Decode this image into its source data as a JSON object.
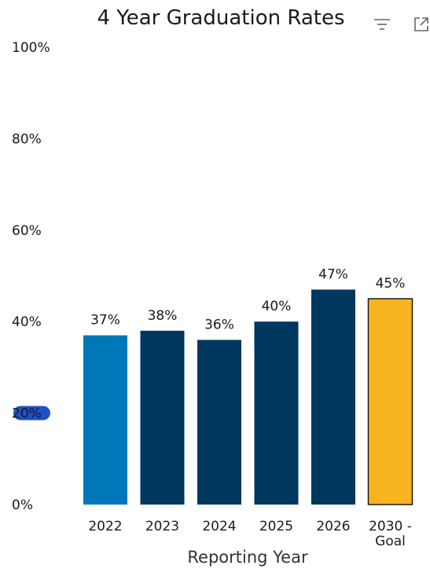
{
  "chart_data": {
    "type": "bar",
    "title": "4 Year Graduation Rates",
    "xlabel": "Reporting Year",
    "ylabel": "",
    "ylim": [
      0,
      100
    ],
    "yticks": [
      "0%",
      "20%",
      "40%",
      "60%",
      "80%",
      "100%"
    ],
    "ytick_values": [
      0,
      20,
      40,
      60,
      80,
      100
    ],
    "grid": false,
    "categories": [
      "2022",
      "2023",
      "2024",
      "2025",
      "2026",
      "2030 - Goal"
    ],
    "category_lines": [
      [
        "2022"
      ],
      [
        "2023"
      ],
      [
        "2024"
      ],
      [
        "2025"
      ],
      [
        "2026"
      ],
      [
        "2030 -",
        "Goal"
      ]
    ],
    "values": [
      37,
      38,
      36,
      40,
      47,
      45
    ],
    "data_labels": [
      "37%",
      "38%",
      "36%",
      "40%",
      "47%",
      "45%"
    ],
    "bar_colors": [
      "#0078B8",
      "#00375F",
      "#00375F",
      "#00375F",
      "#00375F",
      "#F7B420"
    ],
    "highlighted_tick": "20%"
  },
  "toolbar": {
    "filter_icon": "filter-icon",
    "expand_icon": "expand-icon"
  },
  "colors": {
    "highlight_pill": "#1E50C8",
    "goal_outline": "#1a1a1a"
  }
}
